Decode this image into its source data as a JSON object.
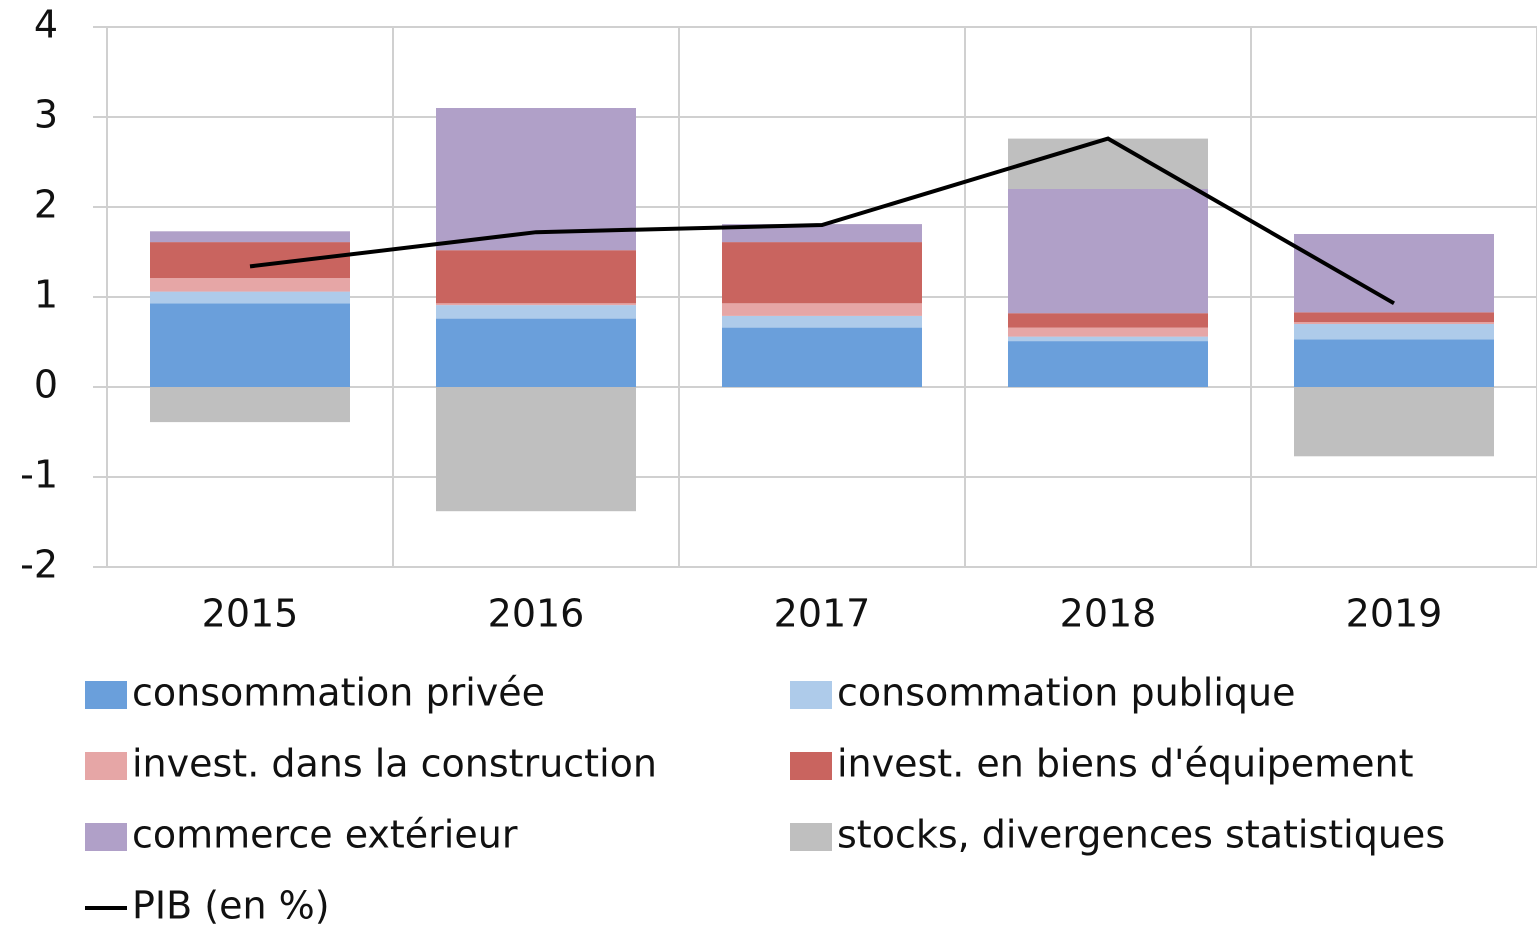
{
  "chart_data": {
    "type": "stacked_bar_line",
    "categories": [
      "2015",
      "2016",
      "2017",
      "2018",
      "2019"
    ],
    "series": [
      {
        "name": "consommation privée",
        "color": "#6a9fdb",
        "values": [
          0.93,
          0.76,
          0.66,
          0.51,
          0.53
        ]
      },
      {
        "name": "consommation publique",
        "color": "#aecbea",
        "values": [
          0.13,
          0.15,
          0.13,
          0.05,
          0.17
        ]
      },
      {
        "name": "invest. dans la construction",
        "color": "#e6a6a6",
        "values": [
          0.15,
          0.02,
          0.14,
          0.1,
          0.02
        ]
      },
      {
        "name": "invest. en biens d'équipement",
        "color": "#c9645f",
        "values": [
          0.4,
          0.59,
          0.68,
          0.16,
          0.11
        ]
      },
      {
        "name": "commerce extérieur",
        "color": "#b0a0c8",
        "values": [
          0.12,
          1.58,
          0.2,
          1.38,
          0.87
        ]
      },
      {
        "name": "stocks, divergences statistiques",
        "color": "#bfbfbf",
        "values": [
          -0.39,
          -1.38,
          0,
          0.56,
          -0.77
        ]
      },
      {
        "name": "PIB (en %)",
        "type": "line",
        "color": "#000000",
        "values": [
          1.34,
          1.72,
          1.8,
          2.76,
          0.93
        ]
      }
    ],
    "ylim": [
      -2,
      4
    ],
    "yticks": [
      -2,
      -1,
      0,
      1,
      2,
      3,
      4
    ],
    "grid": true
  }
}
